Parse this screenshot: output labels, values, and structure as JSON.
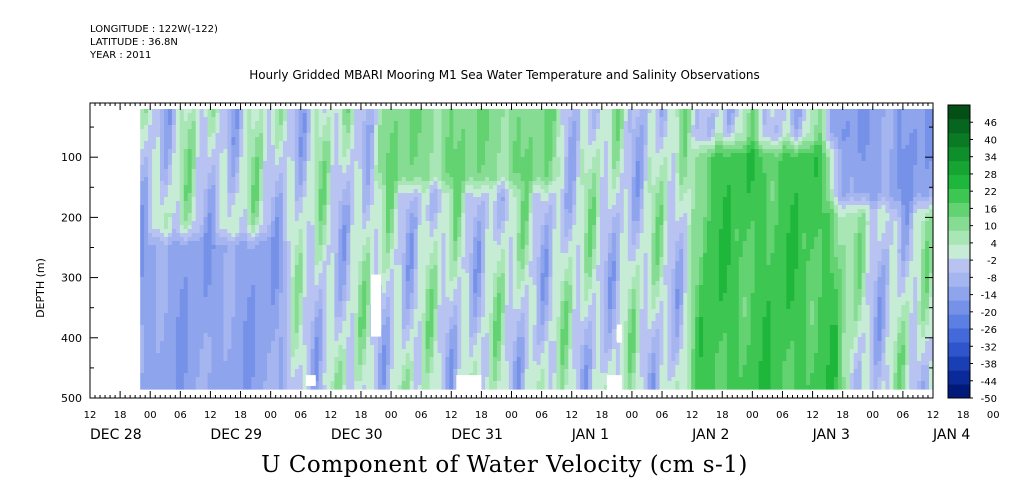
{
  "header": {
    "longitude": "LONGITUDE : 122W(-122)",
    "latitude": "LATITUDE : 36.8N",
    "year": "YEAR : 2011"
  },
  "title": "Hourly Gridded MBARI Mooring M1 Sea Water Temperature and Salinity Observations",
  "bottom_title": "U Component of Water Velocity (cm s-1)",
  "colors": {
    "palette": [
      "#001a7a",
      "#0a2a9a",
      "#1a3fb5",
      "#2e55cc",
      "#4469da",
      "#5b7fe2",
      "#7591e8",
      "#8ea4ec",
      "#a5b5ef",
      "#b8c3f2",
      "#c6ecd6",
      "#a9e6b5",
      "#86dc92",
      "#63d271",
      "#3ec653",
      "#1eb73c",
      "#16a533",
      "#0e8f2b",
      "#0a7a25",
      "#06651e",
      "#034f16"
    ],
    "missing": "#ffffff"
  },
  "chart_data": {
    "type": "heatmap",
    "x_axis": {
      "hour_ticks": [
        "12",
        "18",
        "00",
        "06",
        "12",
        "18",
        "00",
        "06",
        "12",
        "18",
        "00",
        "06",
        "12",
        "18",
        "00",
        "06",
        "12",
        "18",
        "00",
        "06",
        "12",
        "18",
        "00",
        "06",
        "12",
        "18",
        "00",
        "06",
        "12",
        "18",
        "00",
        "06"
      ],
      "date_labels": [
        "DEC 28",
        "DEC 29",
        "DEC 30",
        "DEC 31",
        "JAN 1",
        "JAN 2",
        "JAN 3",
        "JAN 4"
      ],
      "range": [
        "2011-12-28 12:00",
        "2012-01-04 12:00"
      ],
      "data_start": "2011-12-28 22:00"
    },
    "y_axis": {
      "label": "DEPTH (m)",
      "ticks": [
        100,
        200,
        300,
        400,
        500
      ],
      "range": [
        500,
        10
      ],
      "inverted": true,
      "data_range": [
        20,
        485
      ]
    },
    "colorbar": {
      "labels": [
        "46",
        "40",
        "34",
        "28",
        "22",
        "16",
        "10",
        "4",
        "-2",
        "-8",
        "-14",
        "-20",
        "-26",
        "-32",
        "-38",
        "-44",
        "-50"
      ],
      "range": [
        -50,
        52
      ]
    },
    "missing_regions": [
      {
        "time": [
          "2011-12-30 20:00",
          "2011-12-30 22:00"
        ],
        "depth": [
          295,
          398
        ]
      },
      {
        "time": [
          "2011-12-30 07:00",
          "2011-12-30 09:00"
        ],
        "depth": [
          462,
          480
        ]
      },
      {
        "time": [
          "2011-12-31 13:00",
          "2011-12-31 18:00"
        ],
        "depth": [
          462,
          488
        ]
      },
      {
        "time": [
          "2012-01-01 19:00",
          "2012-01-01 22:00"
        ],
        "depth": [
          462,
          488
        ]
      },
      {
        "time": [
          "2012-01-01 21:00",
          "2012-01-01 22:00"
        ],
        "depth": [
          378,
          408
        ]
      }
    ],
    "features": [
      {
        "time": [
          "2012-01-02 15:00",
          "2012-01-03 15:00"
        ],
        "depth": [
          100,
          485
        ],
        "u_range": [
          10,
          30
        ],
        "desc": "strong positive flow"
      },
      {
        "time": [
          "2011-12-31 00:00",
          "2012-01-01 06:00"
        ],
        "depth": [
          20,
          120
        ],
        "u_range": [
          4,
          20
        ]
      },
      {
        "time": [
          "2011-12-28 22:00",
          "2011-12-30 00:00"
        ],
        "depth": [
          250,
          485
        ],
        "u_range": [
          -20,
          -6
        ]
      },
      {
        "time": [
          "2012-01-03 18:00",
          "2012-01-04 10:00"
        ],
        "depth": [
          20,
          150
        ],
        "u_range": [
          -20,
          -8
        ]
      }
    ]
  }
}
